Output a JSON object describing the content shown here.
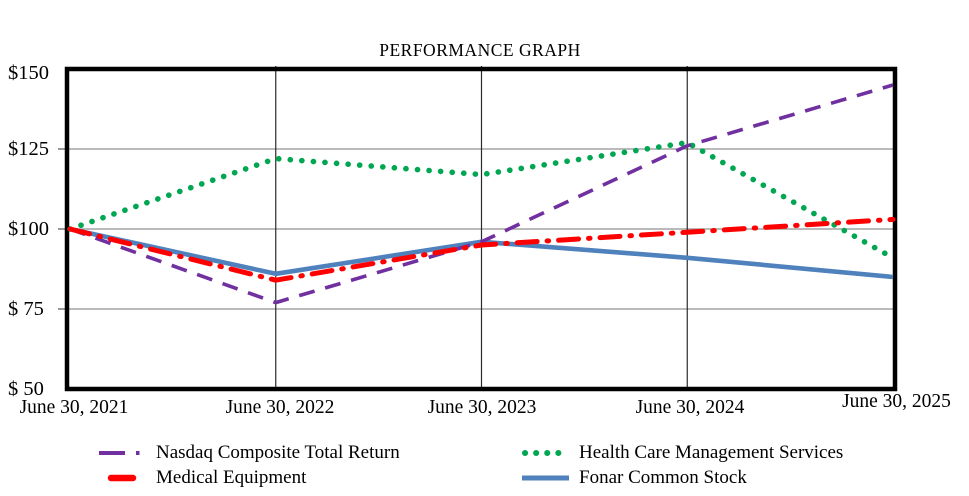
{
  "chart_data": {
    "type": "line",
    "title": "PERFORMANCE GRAPH",
    "xlabel": "",
    "ylabel": "",
    "ylim": [
      50,
      150
    ],
    "grid": true,
    "legend_position": "bottom",
    "categories": [
      "June 30, 2021",
      "June 30, 2022",
      "June 30, 2023",
      "June 30, 2024",
      "June 30, 2025"
    ],
    "x_labels": [
      "June 30, 2021",
      "June 30, 2022",
      "June 30, 2023",
      "June 30, 2024",
      "June 30, 2025"
    ],
    "y_tick_values": [
      150,
      125,
      100,
      75,
      50
    ],
    "y_tick_labels": [
      "$150",
      "$125",
      "$100",
      "$ 75",
      "$ 50"
    ],
    "gridline_values": [
      125,
      100,
      75
    ],
    "series": [
      {
        "name": "Nasdaq Composite Total Return",
        "color": "#7030A0",
        "style": "dashed",
        "values": [
          100,
          77,
          96,
          126,
          145
        ]
      },
      {
        "name": "Medical Equipment",
        "color": "#FF0000",
        "style": "dashdot",
        "values": [
          100,
          84,
          95,
          99,
          103
        ]
      },
      {
        "name": "Health Care Management Services",
        "color": "#00A651",
        "style": "dotted",
        "values": [
          100,
          122,
          117,
          127,
          91
        ]
      },
      {
        "name": "Fonar Common Stock",
        "color": "#4F81BD",
        "style": "solid",
        "values": [
          100,
          86,
          96,
          91,
          85
        ]
      }
    ]
  },
  "colors": {
    "plot_border": "#000000",
    "h_gridline": "#909090",
    "v_gridline": "#2b2b2b"
  }
}
